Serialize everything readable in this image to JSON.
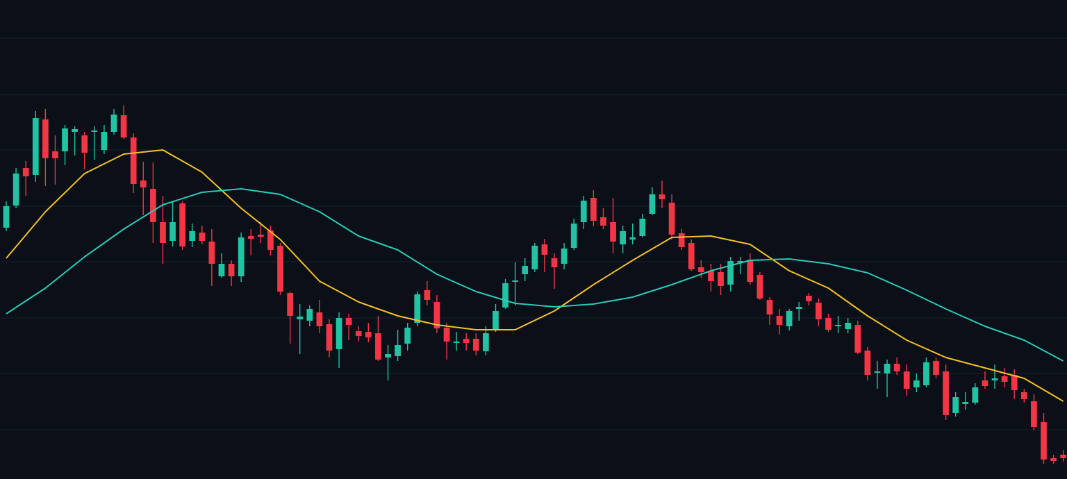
{
  "chart_data": {
    "type": "candlestick",
    "up_color": "#22c3a2",
    "down_color": "#f23645",
    "grid": true,
    "ylim": [
      0,
      690
    ],
    "xlim": [
      -0.64,
      108.38
    ],
    "yticks": [
      635,
      554,
      474,
      393,
      313,
      232,
      152,
      71
    ],
    "open": [
      362,
      394,
      448,
      438,
      518,
      472,
      472,
      500,
      495,
      500,
      474,
      500,
      524,
      492,
      430,
      418,
      370,
      343,
      397,
      343,
      355,
      342,
      292,
      310,
      292,
      350,
      352,
      358,
      336,
      268,
      230,
      228,
      240,
      223,
      187,
      232,
      213,
      212,
      210,
      175,
      177,
      195,
      225,
      272,
      255,
      218,
      196,
      202,
      202,
      184,
      215,
      247,
      284,
      295,
      302,
      338,
      318,
      310,
      333,
      370,
      405,
      377,
      370,
      338,
      345,
      350,
      382,
      410,
      398,
      354,
      340,
      305,
      300,
      298,
      280,
      312,
      316,
      294,
      258,
      235,
      220,
      245,
      264,
      254,
      232,
      220,
      216,
      222,
      185,
      153,
      152,
      166,
      155,
      132,
      135,
      170,
      155,
      95,
      108,
      110,
      142,
      142,
      148,
      150,
      125,
      112,
      82,
      30,
      35
    ],
    "high": [
      400,
      448,
      458,
      530,
      533,
      495,
      510,
      508,
      500,
      508,
      510,
      533,
      538,
      498,
      457,
      456,
      408,
      400,
      400,
      368,
      365,
      360,
      325,
      315,
      355,
      360,
      370,
      365,
      340,
      270,
      252,
      250,
      258,
      230,
      240,
      238,
      220,
      225,
      235,
      193,
      215,
      225,
      270,
      285,
      265,
      225,
      212,
      210,
      210,
      220,
      252,
      288,
      312,
      318,
      340,
      346,
      325,
      340,
      375,
      408,
      416,
      390,
      405,
      365,
      368,
      382,
      420,
      430,
      410,
      360,
      345,
      315,
      310,
      310,
      320,
      320,
      325,
      298,
      262,
      245,
      245,
      255,
      268,
      260,
      238,
      235,
      232,
      228,
      190,
      170,
      172,
      175,
      165,
      152,
      175,
      175,
      165,
      125,
      125,
      138,
      155,
      165,
      160,
      158,
      130,
      122,
      95,
      35,
      42
    ],
    "low": [
      357,
      390,
      408,
      428,
      422,
      424,
      452,
      466,
      446,
      460,
      468,
      496,
      490,
      412,
      380,
      340,
      310,
      335,
      330,
      334,
      338,
      278,
      290,
      278,
      284,
      322,
      340,
      322,
      265,
      195,
      180,
      220,
      210,
      175,
      160,
      200,
      198,
      197,
      170,
      142,
      170,
      185,
      220,
      250,
      210,
      172,
      185,
      185,
      178,
      178,
      212,
      245,
      250,
      285,
      298,
      298,
      274,
      302,
      330,
      360,
      364,
      360,
      325,
      325,
      338,
      348,
      380,
      390,
      345,
      330,
      300,
      290,
      270,
      265,
      270,
      295,
      280,
      258,
      222,
      208,
      214,
      228,
      250,
      220,
      212,
      210,
      210,
      180,
      142,
      130,
      118,
      150,
      120,
      125,
      132,
      145,
      85,
      90,
      100,
      107,
      130,
      130,
      132,
      115,
      110,
      70,
      22,
      22,
      25
    ],
    "close": [
      393,
      440,
      436,
      520,
      462,
      462,
      505,
      504,
      470,
      502,
      500,
      525,
      492,
      425,
      420,
      370,
      340,
      370,
      335,
      357,
      343,
      310,
      310,
      292,
      348,
      346,
      349,
      330,
      270,
      235,
      234,
      245,
      220,
      185,
      232,
      222,
      206,
      204,
      172,
      180,
      193,
      218,
      266,
      258,
      217,
      198,
      198,
      196,
      185,
      210,
      242,
      282,
      286,
      307,
      336,
      323,
      305,
      332,
      368,
      401,
      372,
      365,
      342,
      357,
      348,
      375,
      410,
      403,
      352,
      334,
      302,
      298,
      285,
      278,
      314,
      314,
      284,
      260,
      237,
      222,
      242,
      248,
      256,
      230,
      215,
      222,
      225,
      182,
      150,
      155,
      166,
      155,
      130,
      142,
      168,
      150,
      92,
      118,
      111,
      132,
      134,
      145,
      140,
      128,
      115,
      75,
      28,
      26,
      30
    ],
    "series": [
      {
        "type": "line",
        "color": "#f5c02a",
        "x": [
          0,
          4,
          8,
          12,
          16,
          20,
          24,
          28,
          32,
          36,
          40,
          44,
          48,
          52,
          56,
          60,
          64,
          68,
          72,
          76,
          80,
          84,
          88,
          92,
          96,
          100,
          104,
          108
        ],
        "values": [
          318,
          385,
          440,
          468,
          474,
          442,
          390,
          345,
          285,
          255,
          235,
          222,
          215,
          215,
          242,
          280,
          315,
          348,
          350,
          338,
          300,
          275,
          235,
          200,
          175,
          160,
          145,
          112
        ]
      },
      {
        "type": "line",
        "color": "#2ec9b6",
        "x": [
          0,
          4,
          8,
          12,
          16,
          20,
          24,
          28,
          32,
          36,
          40,
          44,
          48,
          52,
          56,
          60,
          64,
          68,
          72,
          76,
          80,
          84,
          88,
          92,
          96,
          100,
          104,
          108
        ],
        "values": [
          238,
          275,
          320,
          360,
          395,
          413,
          418,
          410,
          385,
          350,
          330,
          295,
          270,
          253,
          248,
          252,
          262,
          280,
          300,
          315,
          317,
          310,
          297,
          272,
          245,
          220,
          200,
          170
        ]
      }
    ]
  }
}
